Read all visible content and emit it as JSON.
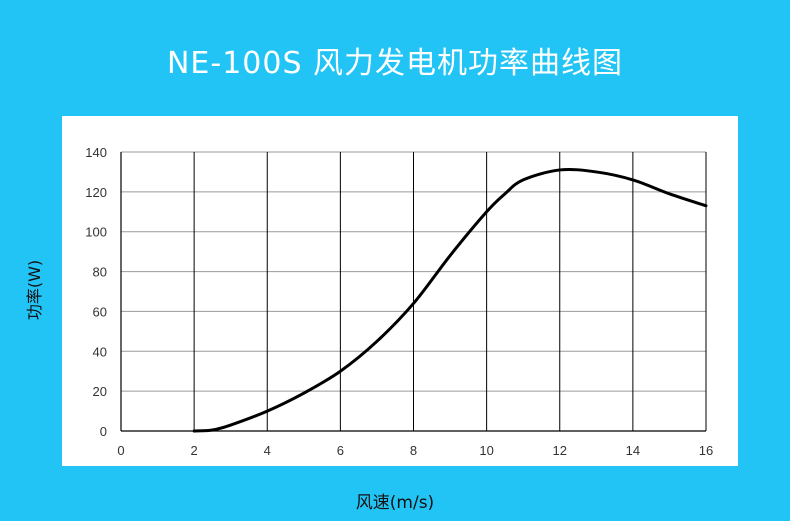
{
  "title": "NE-100S 风力发电机功率曲线图",
  "chart_data": {
    "type": "line",
    "title": "NE-100S 风力发电机功率曲线图",
    "xlabel": "风速(m/s)",
    "ylabel": "功率(W)",
    "xlim": [
      0,
      16
    ],
    "ylim": [
      0,
      140
    ],
    "x_ticks": [
      0,
      2,
      4,
      6,
      8,
      10,
      12,
      14,
      16
    ],
    "y_ticks": [
      0,
      20,
      40,
      60,
      80,
      100,
      120,
      140
    ],
    "grid": "both",
    "legend": "none",
    "line_color": "#000000",
    "x": [
      2,
      2.5,
      3,
      4,
      5,
      6,
      7,
      8,
      9,
      10,
      10.5,
      11,
      12,
      13,
      14,
      15,
      16
    ],
    "y": [
      0,
      0.5,
      3,
      10,
      19,
      30,
      45,
      64,
      88,
      110,
      119,
      126,
      131,
      130,
      126,
      119,
      113
    ]
  }
}
